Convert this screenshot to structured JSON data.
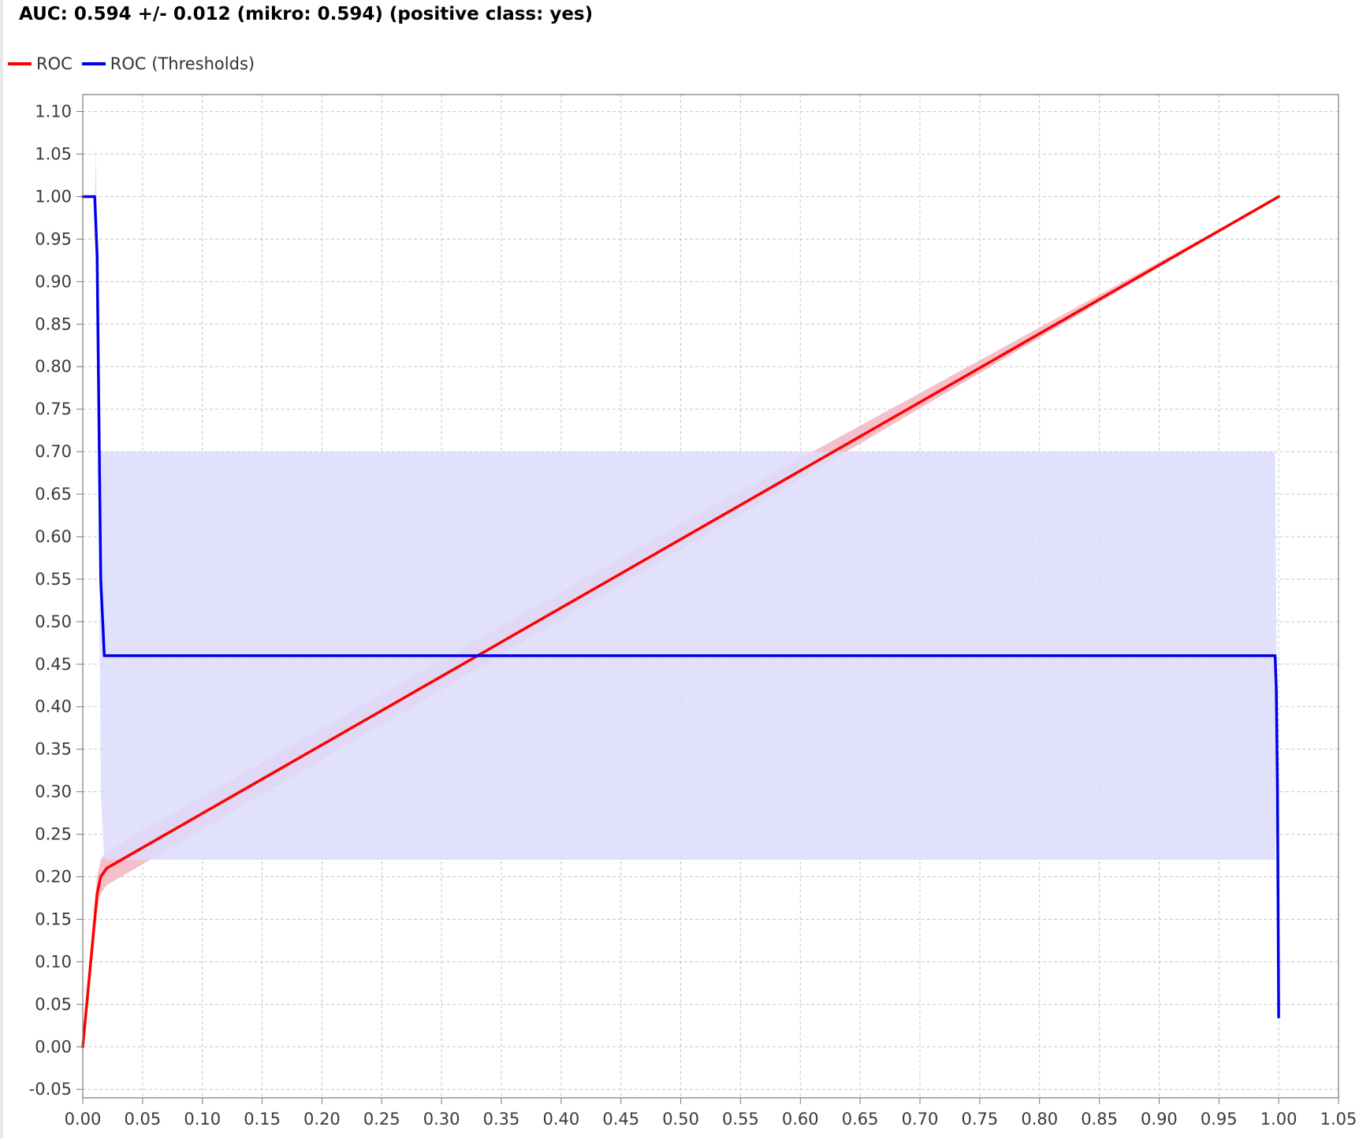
{
  "title": "AUC: 0.594 +/- 0.012 (mikro: 0.594) (positive class: yes)",
  "legend": [
    {
      "label": "ROC",
      "color": "#ff0000"
    },
    {
      "label": "ROC (Thresholds)",
      "color": "#0000ee"
    }
  ],
  "chart_data": {
    "type": "line",
    "title": "AUC: 0.594 +/- 0.012 (mikro: 0.594) (positive class: yes)",
    "xlabel": "",
    "ylabel": "",
    "xlim": [
      0.0,
      1.05
    ],
    "ylim": [
      -0.06,
      1.12
    ],
    "x_ticks": [
      "0.00",
      "0.05",
      "0.10",
      "0.15",
      "0.20",
      "0.25",
      "0.30",
      "0.35",
      "0.40",
      "0.45",
      "0.50",
      "0.55",
      "0.60",
      "0.65",
      "0.70",
      "0.75",
      "0.80",
      "0.85",
      "0.90",
      "0.95",
      "1.00",
      "1.05"
    ],
    "y_ticks": [
      "-0.05",
      "0.00",
      "0.05",
      "0.10",
      "0.15",
      "0.20",
      "0.25",
      "0.30",
      "0.35",
      "0.40",
      "0.45",
      "0.50",
      "0.55",
      "0.60",
      "0.65",
      "0.70",
      "0.75",
      "0.80",
      "0.85",
      "0.90",
      "0.95",
      "1.00",
      "1.05",
      "1.10"
    ],
    "grid": true,
    "legend_position": "top-left",
    "series": [
      {
        "name": "ROC",
        "color": "#ff0000",
        "band_color": "#f2b6c2",
        "points": [
          [
            0.0,
            0.0
          ],
          [
            0.012,
            0.18
          ],
          [
            0.015,
            0.2
          ],
          [
            0.02,
            0.21
          ],
          [
            1.0,
            1.0
          ]
        ],
        "band_upper": [
          [
            0.0,
            0.01
          ],
          [
            0.012,
            0.2
          ],
          [
            0.015,
            0.22
          ],
          [
            0.02,
            0.23
          ],
          [
            0.5,
            0.615
          ],
          [
            1.0,
            1.0
          ]
        ],
        "band_lower": [
          [
            0.0,
            -0.01
          ],
          [
            0.012,
            0.16
          ],
          [
            0.015,
            0.18
          ],
          [
            0.02,
            0.19
          ],
          [
            0.5,
            0.585
          ],
          [
            1.0,
            1.0
          ]
        ]
      },
      {
        "name": "ROC (Thresholds)",
        "color": "#0000ee",
        "band_color": "#dcdcfc",
        "points": [
          [
            0.0,
            1.0
          ],
          [
            0.01,
            1.0
          ],
          [
            0.012,
            0.93
          ],
          [
            0.015,
            0.55
          ],
          [
            0.018,
            0.46
          ],
          [
            0.997,
            0.46
          ],
          [
            0.998,
            0.42
          ],
          [
            0.999,
            0.3
          ],
          [
            1.0,
            0.035
          ]
        ],
        "band_upper": [
          [
            0.01,
            1.0
          ],
          [
            0.011,
            1.06
          ],
          [
            0.012,
            0.93
          ],
          [
            0.015,
            0.7
          ],
          [
            0.997,
            0.7
          ],
          [
            0.999,
            0.3
          ],
          [
            1.0,
            0.035
          ]
        ],
        "band_lower": [
          [
            0.01,
            1.0
          ],
          [
            0.011,
            0.94
          ],
          [
            0.012,
            0.93
          ],
          [
            0.015,
            0.3
          ],
          [
            0.018,
            0.22
          ],
          [
            0.997,
            0.22
          ],
          [
            0.999,
            0.3
          ],
          [
            1.0,
            0.035
          ]
        ]
      }
    ]
  }
}
